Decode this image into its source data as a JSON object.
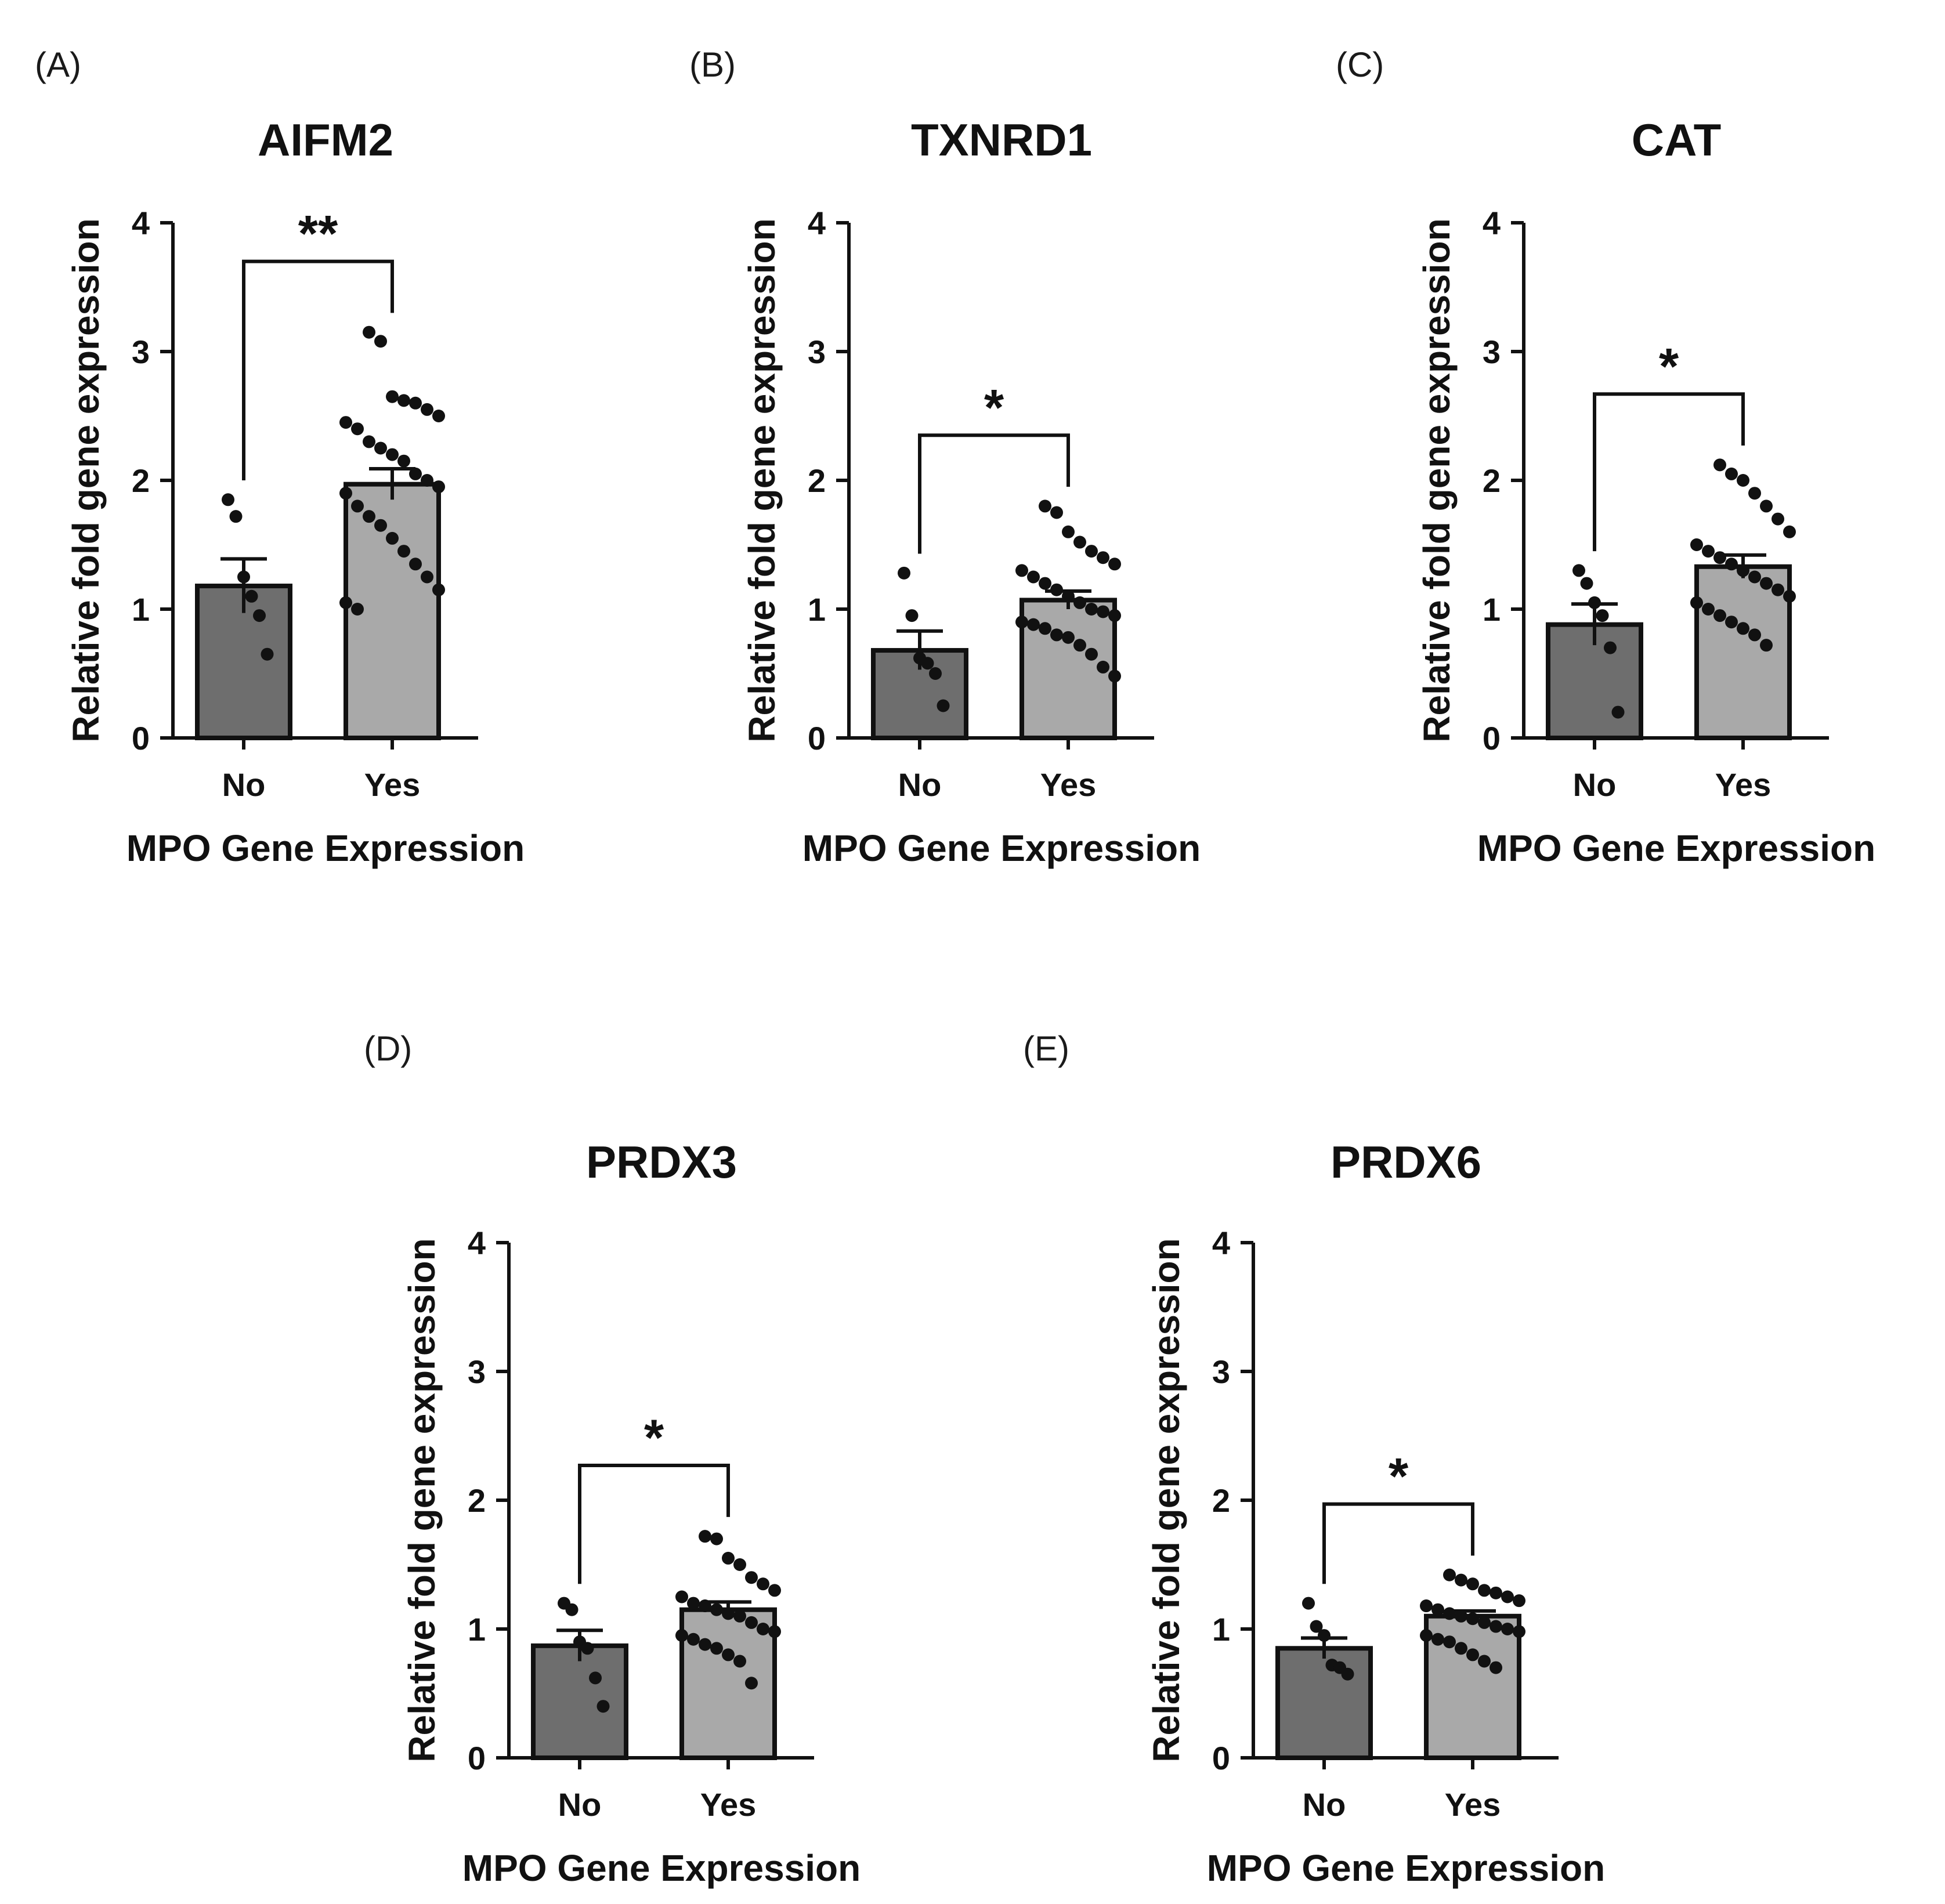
{
  "chart_data": [
    {
      "panel": "(A)",
      "title": "AIFM2",
      "type": "bar",
      "xlabel": "MPO Gene Expression",
      "ylabel": "Relative fold gene expression",
      "ylim": [
        0,
        4
      ],
      "yticks": [
        "0",
        "1",
        "2",
        "3",
        "4"
      ],
      "categories": [
        "No",
        "Yes"
      ],
      "colors": [
        "#6e6e6e",
        "#a9a9a9"
      ],
      "values": [
        1.18,
        1.97
      ],
      "sem": [
        0.21,
        0.12
      ],
      "points": [
        [
          1.85,
          1.72,
          1.25,
          1.1,
          0.95,
          0.65
        ],
        [
          3.15,
          3.08,
          2.65,
          2.62,
          2.6,
          2.55,
          2.5,
          2.45,
          2.4,
          2.3,
          2.25,
          2.2,
          2.15,
          2.05,
          2.0,
          1.95,
          1.9,
          1.8,
          1.72,
          1.65,
          1.55,
          1.45,
          1.35,
          1.25,
          1.15,
          1.05,
          1.0
        ]
      ],
      "significance": "**"
    },
    {
      "panel": "(B)",
      "title": "TXNRD1",
      "type": "bar",
      "xlabel": "MPO Gene Expression",
      "ylabel": "Relative fold gene expression",
      "ylim": [
        0,
        4
      ],
      "yticks": [
        "0",
        "1",
        "2",
        "3",
        "4"
      ],
      "categories": [
        "No",
        "Yes"
      ],
      "colors": [
        "#6e6e6e",
        "#a9a9a9"
      ],
      "values": [
        0.68,
        1.07
      ],
      "sem": [
        0.15,
        0.07
      ],
      "points": [
        [
          1.28,
          0.95,
          0.62,
          0.58,
          0.5,
          0.25
        ],
        [
          1.8,
          1.75,
          1.6,
          1.52,
          1.45,
          1.4,
          1.35,
          1.3,
          1.25,
          1.2,
          1.15,
          1.1,
          1.05,
          1.0,
          0.98,
          0.95,
          0.9,
          0.88,
          0.85,
          0.8,
          0.78,
          0.72,
          0.65,
          0.55,
          0.48
        ]
      ],
      "significance": "*"
    },
    {
      "panel": "(C)",
      "title": "CAT",
      "type": "bar",
      "xlabel": "MPO Gene Expression",
      "ylabel": "Relative fold gene expression",
      "ylim": [
        0,
        4
      ],
      "yticks": [
        "0",
        "1",
        "2",
        "3",
        "4"
      ],
      "categories": [
        "No",
        "Yes"
      ],
      "colors": [
        "#6e6e6e",
        "#a9a9a9"
      ],
      "values": [
        0.88,
        1.33
      ],
      "sem": [
        0.16,
        0.09
      ],
      "points": [
        [
          1.3,
          1.2,
          1.05,
          0.95,
          0.7,
          0.2
        ],
        [
          2.12,
          2.05,
          2.0,
          1.9,
          1.8,
          1.7,
          1.6,
          1.5,
          1.45,
          1.4,
          1.35,
          1.3,
          1.25,
          1.2,
          1.15,
          1.1,
          1.05,
          1.0,
          0.95,
          0.9,
          0.85,
          0.8,
          0.72
        ]
      ],
      "significance": "*"
    },
    {
      "panel": "(D)",
      "title": "PRDX3",
      "type": "bar",
      "xlabel": "MPO Gene Expression",
      "ylabel": "Relative fold gene expression",
      "ylim": [
        0,
        4
      ],
      "yticks": [
        "0",
        "1",
        "2",
        "3",
        "4"
      ],
      "categories": [
        "No",
        "Yes"
      ],
      "colors": [
        "#6e6e6e",
        "#a9a9a9"
      ],
      "values": [
        0.87,
        1.15
      ],
      "sem": [
        0.12,
        0.06
      ],
      "points": [
        [
          1.2,
          1.15,
          0.9,
          0.85,
          0.62,
          0.4
        ],
        [
          1.72,
          1.7,
          1.55,
          1.5,
          1.4,
          1.35,
          1.3,
          1.25,
          1.2,
          1.18,
          1.15,
          1.12,
          1.1,
          1.05,
          1.0,
          0.98,
          0.95,
          0.92,
          0.88,
          0.85,
          0.8,
          0.75,
          0.58
        ]
      ],
      "significance": "*"
    },
    {
      "panel": "(E)",
      "title": "PRDX6",
      "type": "bar",
      "xlabel": "MPO Gene Expression",
      "ylabel": "Relative fold gene expression",
      "ylim": [
        0,
        4
      ],
      "yticks": [
        "0",
        "1",
        "2",
        "3",
        "4"
      ],
      "categories": [
        "No",
        "Yes"
      ],
      "colors": [
        "#6e6e6e",
        "#a9a9a9"
      ],
      "values": [
        0.85,
        1.1
      ],
      "sem": [
        0.08,
        0.04
      ],
      "points": [
        [
          1.2,
          1.02,
          0.95,
          0.72,
          0.7,
          0.65
        ],
        [
          1.42,
          1.38,
          1.35,
          1.3,
          1.28,
          1.25,
          1.22,
          1.18,
          1.15,
          1.12,
          1.1,
          1.08,
          1.05,
          1.02,
          1.0,
          0.98,
          0.95,
          0.92,
          0.9,
          0.85,
          0.8,
          0.75,
          0.7
        ]
      ],
      "significance": "*"
    }
  ]
}
